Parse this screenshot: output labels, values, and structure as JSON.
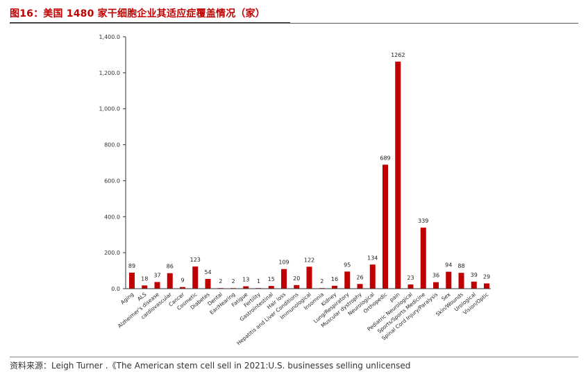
{
  "figure": {
    "title": "图16：美国 1480 家干细胞企业其适应症覆盖情况（家）"
  },
  "source": "资料来源：Leigh Turner .《The American stem cell sell in 2021:U.S. businesses selling unlicensed",
  "chart_data": {
    "type": "bar",
    "title": "",
    "xlabel": "",
    "ylabel": "",
    "ylim": [
      0,
      1400
    ],
    "yticks": [
      0,
      200,
      400,
      600,
      800,
      1000,
      1200,
      1400
    ],
    "ytick_labels": [
      "0.0",
      "200.0",
      "400.0",
      "600.0",
      "800.0",
      "1,000.0",
      "1,200.0",
      "1,400.0"
    ],
    "bar_color": "#c00000",
    "grid": false,
    "legend": "none",
    "categories": [
      "Aging",
      "ALS",
      "Alzheimer's disease",
      "cardiovascular",
      "Cancer",
      "Cosmetic",
      "Diabetes",
      "Dental",
      "Ear/Hearing",
      "Fatigue",
      "Fertility",
      "Gastrointestinal",
      "Hair loss",
      "Hepatitis and Liver Conditions",
      "Immunological",
      "Insomnia",
      "Kidney",
      "Lung/Respiratory",
      "Muscular dystrophy",
      "Neurological",
      "Orthopedic",
      "pain",
      "Pediatric Neurological",
      "Sports/Sports Medicine",
      "Spinal Cord Injury/Paralysis",
      "Sex",
      "Skin/Wounds",
      "Urological",
      "Vision/Optic"
    ],
    "values": [
      89,
      18,
      37,
      86,
      9,
      123,
      54,
      2,
      2,
      13,
      1,
      15,
      109,
      20,
      122,
      2,
      16,
      95,
      26,
      134,
      689,
      1262,
      23,
      339,
      36,
      94,
      88,
      39,
      29
    ]
  }
}
